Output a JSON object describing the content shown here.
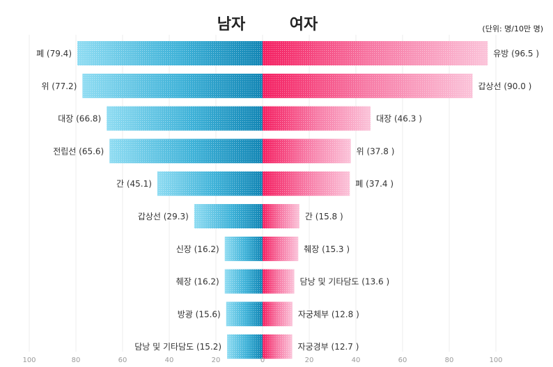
{
  "chart_data": {
    "type": "bar",
    "orientation": "horizontal-butterfly",
    "left_title": "남자",
    "right_title": "여자",
    "unit_label": "(단위: 명/10만 명)",
    "xlim": [
      -100,
      100
    ],
    "x_ticks": [
      "100",
      "80",
      "60",
      "40",
      "20",
      "0",
      "20",
      "40",
      "60",
      "80",
      "100"
    ],
    "grid": true,
    "series": [
      {
        "name": "남자",
        "side": "left",
        "color": "#1f8fbf",
        "labels": [
          "폐 (79.4)",
          "위 (77.2)",
          "대장 (66.8)",
          "전립선 (65.6)",
          "간 (45.1)",
          "갑상선 (29.3)",
          "신장 (16.2)",
          "췌장 (16.2)",
          "방광 (15.6)",
          "담낭 및 기타담도 (15.2)"
        ],
        "categories": [
          "폐",
          "위",
          "대장",
          "전립선",
          "간",
          "갑상선",
          "신장",
          "췌장",
          "방광",
          "담낭 및 기타담도"
        ],
        "values": [
          79.4,
          77.2,
          66.8,
          65.6,
          45.1,
          29.3,
          16.2,
          16.2,
          15.6,
          15.2
        ]
      },
      {
        "name": "여자",
        "side": "right",
        "color": "#f0306a",
        "labels": [
          "유방 (96.5 )",
          "갑상선 (90.0 )",
          "대장 (46.3 )",
          "위 (37.8 )",
          "폐 (37.4 )",
          "간 (15.8 )",
          "췌장 (15.3 )",
          "담낭 및 기타담도 (13.6 )",
          "자궁체부 (12.8 )",
          "자궁경부 (12.7 )"
        ],
        "categories": [
          "유방",
          "갑상선",
          "대장",
          "위",
          "폐",
          "간",
          "췌장",
          "담낭 및 기타담도",
          "자궁체부",
          "자궁경부"
        ],
        "values": [
          96.5,
          90.0,
          46.3,
          37.8,
          37.4,
          15.8,
          15.3,
          13.6,
          12.8,
          12.7
        ]
      }
    ]
  }
}
